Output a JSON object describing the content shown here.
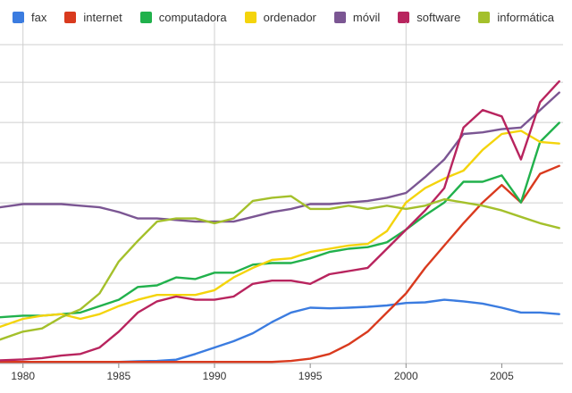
{
  "chart_data": {
    "type": "line",
    "legend_position": "top",
    "grid": true,
    "xlim": [
      1978.8,
      2008.2
    ],
    "ylim": [
      0,
      100
    ],
    "x_ticks": [
      1980,
      1985,
      1990,
      1995,
      2000,
      2005
    ],
    "x_tick_labels": [
      "1980",
      "1985",
      "1990",
      "1995",
      "2000",
      "2005"
    ],
    "x_gridlines": [
      1980,
      1990,
      2000
    ],
    "y_gridlines": [
      0,
      12.6,
      25.2,
      37.8,
      50.4,
      63,
      75.6,
      88.2,
      100
    ],
    "series": [
      {
        "name": "fax",
        "color": "#3B7CE0",
        "x": [
          1978.8,
          1980,
          1981,
          1982,
          1983,
          1984,
          1985,
          1986,
          1987,
          1988,
          1989,
          1990,
          1991,
          1992,
          1993,
          1994,
          1995,
          1996,
          1997,
          1998,
          1999,
          2000,
          2001,
          2002,
          2003,
          2004,
          2005,
          2006,
          2007,
          2008
        ],
        "y": [
          0.5,
          0.5,
          0.5,
          0.5,
          0.5,
          0.5,
          0.5,
          0.7,
          0.8,
          1.2,
          3,
          5,
          7,
          9.5,
          13,
          16,
          17.5,
          17.3,
          17.5,
          17.8,
          18.2,
          19,
          19.2,
          20,
          19.5,
          18.8,
          17.5,
          16,
          16,
          15.5
        ]
      },
      {
        "name": "internet",
        "color": "#D93A1E",
        "x": [
          1978.8,
          1980,
          1985,
          1990,
          1993,
          1994,
          1995,
          1996,
          1997,
          1998,
          1999,
          2000,
          2001,
          2002,
          2003,
          2004,
          2005,
          2006,
          2007,
          2008
        ],
        "y": [
          0.5,
          0.5,
          0.5,
          0.5,
          0.5,
          0.8,
          1.5,
          3,
          6,
          10,
          16,
          22,
          30,
          37,
          44,
          50.5,
          56,
          50.5,
          59.5,
          62
        ]
      },
      {
        "name": "computadora",
        "color": "#21B14C",
        "x": [
          1978.8,
          1980,
          1981,
          1982,
          1983,
          1984,
          1985,
          1986,
          1987,
          1988,
          1989,
          1990,
          1991,
          1992,
          1993,
          1994,
          1995,
          1996,
          1997,
          1998,
          1999,
          2000,
          2001,
          2002,
          2003,
          2004,
          2005,
          2006,
          2007,
          2008
        ],
        "y": [
          14.5,
          15,
          15,
          15.5,
          16,
          18,
          20,
          24,
          24.5,
          27,
          26.5,
          28.5,
          28.5,
          31,
          31.5,
          31.5,
          33,
          35,
          36,
          36.5,
          38,
          42,
          46.5,
          50.5,
          57,
          57,
          59,
          50.5,
          69.5,
          75.5
        ]
      },
      {
        "name": "ordenador",
        "color": "#F4D40C",
        "x": [
          1978.8,
          1980,
          1981,
          1982,
          1983,
          1984,
          1985,
          1986,
          1987,
          1988,
          1989,
          1990,
          1991,
          1992,
          1993,
          1994,
          1995,
          1996,
          1997,
          1998,
          1999,
          2000,
          2001,
          2002,
          2003,
          2004,
          2005,
          2006,
          2007,
          2008
        ],
        "y": [
          11.5,
          14,
          15,
          15.5,
          14,
          15.5,
          18,
          20,
          21.5,
          21.5,
          21.5,
          23,
          27,
          30,
          32.5,
          33,
          35,
          36,
          37,
          37.5,
          41.5,
          50.5,
          55,
          58,
          60.5,
          67,
          72,
          73,
          69.5,
          69
        ]
      },
      {
        "name": "móvil",
        "color": "#7B5693",
        "x": [
          1978.8,
          1980,
          1981,
          1982,
          1983,
          1984,
          1985,
          1986,
          1987,
          1988,
          1989,
          1990,
          1991,
          1992,
          1993,
          1994,
          1995,
          1996,
          1997,
          1998,
          1999,
          2000,
          2001,
          2002,
          2003,
          2004,
          2005,
          2006,
          2007,
          2008
        ],
        "y": [
          49,
          50,
          50,
          50,
          49.5,
          49,
          47.5,
          45.5,
          45.5,
          45,
          44.5,
          44.5,
          44.5,
          46,
          47.5,
          48.5,
          50,
          50,
          50.5,
          51,
          52,
          53.5,
          58.5,
          64,
          72,
          72.5,
          73.5,
          74,
          79.5,
          85
        ]
      },
      {
        "name": "software",
        "color": "#B8245E",
        "x": [
          1978.8,
          1980,
          1981,
          1982,
          1983,
          1984,
          1985,
          1986,
          1987,
          1988,
          1989,
          1990,
          1991,
          1992,
          1993,
          1994,
          1995,
          1996,
          1997,
          1998,
          1999,
          2000,
          2001,
          2002,
          2003,
          2004,
          2005,
          2006,
          2007,
          2008
        ],
        "y": [
          1,
          1.3,
          1.7,
          2.5,
          3,
          5,
          10,
          16,
          19.5,
          21,
          20,
          20,
          21,
          25,
          26,
          26,
          25,
          28,
          29,
          30,
          36,
          42,
          48,
          55,
          74,
          79.5,
          77.5,
          64,
          82,
          88.5
        ]
      },
      {
        "name": "informática",
        "color": "#A4C02B",
        "x": [
          1978.8,
          1980,
          1981,
          1982,
          1983,
          1984,
          1985,
          1986,
          1987,
          1988,
          1989,
          1990,
          1991,
          1992,
          1993,
          1994,
          1995,
          1996,
          1997,
          1998,
          1999,
          2000,
          2001,
          2002,
          2003,
          2004,
          2005,
          2006,
          2007,
          2008
        ],
        "y": [
          7.5,
          10,
          11,
          14.5,
          17,
          22,
          32,
          38.5,
          44.5,
          45.5,
          45.5,
          44,
          45.5,
          51,
          52,
          52.5,
          48.5,
          48.5,
          49.5,
          48.5,
          49.5,
          48.5,
          49.5,
          51.5,
          50.5,
          49.5,
          48,
          46,
          44,
          42.5
        ]
      }
    ]
  }
}
